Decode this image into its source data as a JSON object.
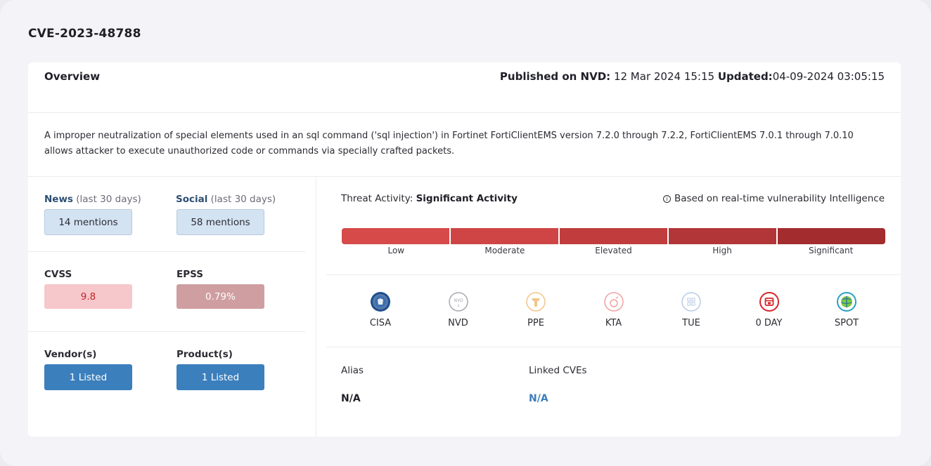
{
  "cve_id": "CVE-2023-48788",
  "overview": {
    "label": "Overview",
    "published_label": "Published on NVD:",
    "published_value": " 12 Mar 2024 15:15 ",
    "updated_label": "Updated:",
    "updated_value": "04-09-2024 03:05:15"
  },
  "description": "A improper neutralization of special elements used in an sql command ('sql injection') in Fortinet FortiClientEMS version 7.2.0 through 7.2.2, FortiClientEMS 7.0.1 through 7.0.10 allows attacker to execute unauthorized code or commands via specially crafted packets.",
  "metrics": {
    "news": {
      "label": "News",
      "period": " (last 30 days)",
      "value": "14 mentions"
    },
    "social": {
      "label": "Social",
      "period": " (last 30 days)",
      "value": "58 mentions"
    },
    "cvss": {
      "label": "CVSS",
      "value": "9.8"
    },
    "epss": {
      "label": "EPSS",
      "value": "0.79%"
    },
    "vendors": {
      "label": "Vendor(s)",
      "value": "1 Listed"
    },
    "products": {
      "label": "Product(s)",
      "value": "1 Listed"
    }
  },
  "threat": {
    "label": "Threat Activity: ",
    "level": "Significant Activity",
    "note": "Based on real-time vulnerability Intelligence",
    "scale": [
      {
        "label": "Low",
        "color": "#d64a4a"
      },
      {
        "label": "Moderate",
        "color": "#cf4545"
      },
      {
        "label": "Elevated",
        "color": "#c13d3d"
      },
      {
        "label": "High",
        "color": "#b23637"
      },
      {
        "label": "Significant",
        "color": "#a32c2f"
      }
    ]
  },
  "sources": [
    {
      "label": "CISA",
      "icon": "cisa-seal-icon",
      "active": true,
      "color": "#1f4e8c"
    },
    {
      "label": "NVD",
      "icon": "nvd-icon",
      "active": false,
      "color": "#a8a8b0"
    },
    {
      "label": "PPE",
      "icon": "ppe-icon",
      "active": false,
      "color": "#f2c58c"
    },
    {
      "label": "KTA",
      "icon": "kta-icon",
      "active": false,
      "color": "#f0a2a2"
    },
    {
      "label": "TUE",
      "icon": "tue-icon",
      "active": false,
      "color": "#b8cbe6"
    },
    {
      "label": "0 DAY",
      "icon": "zero-day-calendar-icon",
      "active": true,
      "color": "#d6262a"
    },
    {
      "label": "SPOT",
      "icon": "spot-globe-icon",
      "active": true,
      "color": "#2aa0c9"
    }
  ],
  "alias": {
    "label": "Alias",
    "value": "N/A"
  },
  "linked_cves": {
    "label": "Linked CVEs",
    "value": "N/A"
  }
}
